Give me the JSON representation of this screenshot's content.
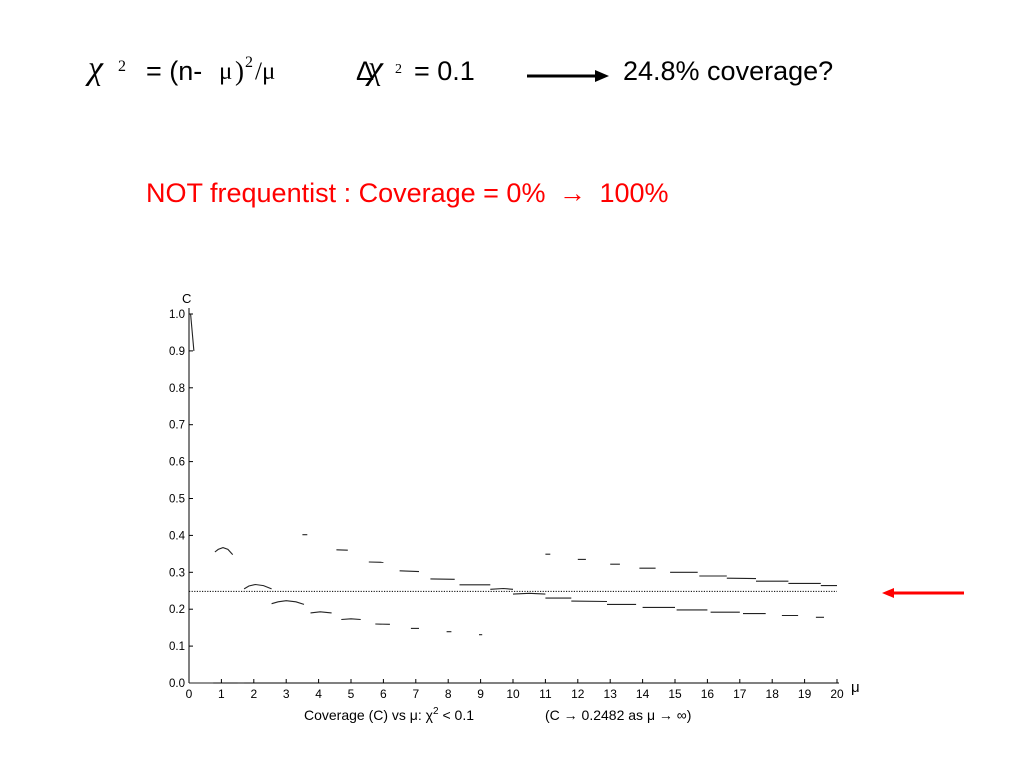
{
  "header": {
    "chi_symbol": "χ",
    "chi_power": "2",
    "formula_lhs": "= (n-",
    "mu": "μ",
    "close_paren": ")",
    "power2": "2",
    "slash_mu": "/μ",
    "delta": "Δ",
    "delta_chi": "χ",
    "delta_chi_power": "2",
    "delta_value": "= 0.1",
    "coverage_result": "24.8% coverage?"
  },
  "subtitle": {
    "part1": "NOT frequentist :  Coverage = 0%",
    "arrow": "→",
    "part2": "100%"
  },
  "colors": {
    "accent": "#ff0000",
    "text": "#000000"
  },
  "chart_data": {
    "type": "line",
    "ylabel": "C",
    "xlabel": "μ",
    "caption_left": "Coverage (C) vs μ:  χ",
    "caption_sup": "2",
    "caption_mid": " < 0.1",
    "caption_right": "(C → 0.2482 as μ → ∞)",
    "xlim": [
      0,
      20
    ],
    "ylim": [
      0.0,
      1.0
    ],
    "x_ticks": [
      "0",
      "1",
      "2",
      "3",
      "4",
      "5",
      "6",
      "7",
      "8",
      "9",
      "10",
      "11",
      "12",
      "13",
      "14",
      "15",
      "16",
      "17",
      "18",
      "19",
      "20"
    ],
    "y_ticks": [
      "0.0",
      "0.1",
      "0.2",
      "0.3",
      "0.4",
      "0.5",
      "0.6",
      "0.7",
      "0.8",
      "0.9",
      "1.0"
    ],
    "reference_line": {
      "y": 0.2482,
      "style": "dotted"
    },
    "segments": [
      [
        [
          0.05,
          1.0
        ],
        [
          0.15,
          0.9
        ]
      ],
      [
        [
          0.0,
          0.0
        ],
        [
          0.75,
          0.0
        ]
      ],
      [
        [
          1.5,
          0.0
        ],
        [
          1.7,
          0.0
        ]
      ],
      [
        [
          0.8,
          0.355
        ],
        [
          0.9,
          0.362
        ],
        [
          1.05,
          0.367
        ],
        [
          1.2,
          0.362
        ],
        [
          1.35,
          0.348
        ]
      ],
      [
        [
          1.7,
          0.255
        ],
        [
          1.85,
          0.263
        ],
        [
          2.05,
          0.267
        ],
        [
          2.3,
          0.264
        ],
        [
          2.55,
          0.255
        ]
      ],
      [
        [
          2.55,
          0.215
        ],
        [
          2.75,
          0.22
        ],
        [
          3.0,
          0.223
        ],
        [
          3.3,
          0.22
        ],
        [
          3.55,
          0.213
        ]
      ],
      [
        [
          3.75,
          0.19
        ],
        [
          4.05,
          0.193
        ],
        [
          4.4,
          0.19
        ]
      ],
      [
        [
          4.7,
          0.172
        ],
        [
          5.0,
          0.174
        ],
        [
          5.3,
          0.172
        ]
      ],
      [
        [
          5.75,
          0.16
        ],
        [
          6.2,
          0.159
        ]
      ],
      [
        [
          6.85,
          0.148
        ],
        [
          7.1,
          0.148
        ]
      ],
      [
        [
          7.95,
          0.139
        ],
        [
          8.1,
          0.139
        ]
      ],
      [
        [
          8.95,
          0.131
        ],
        [
          9.05,
          0.131
        ]
      ],
      [
        [
          3.5,
          0.402
        ],
        [
          3.65,
          0.402
        ]
      ],
      [
        [
          4.55,
          0.361
        ],
        [
          4.9,
          0.36
        ]
      ],
      [
        [
          5.55,
          0.328
        ],
        [
          6.0,
          0.327
        ]
      ],
      [
        [
          6.5,
          0.304
        ],
        [
          7.1,
          0.302
        ]
      ],
      [
        [
          7.45,
          0.282
        ],
        [
          8.2,
          0.281
        ]
      ],
      [
        [
          8.35,
          0.266
        ],
        [
          9.3,
          0.266
        ]
      ],
      [
        [
          9.3,
          0.254
        ],
        [
          9.7,
          0.256
        ],
        [
          10.0,
          0.254
        ]
      ],
      [
        [
          10.0,
          0.241
        ],
        [
          10.5,
          0.243
        ],
        [
          11.0,
          0.241
        ]
      ],
      [
        [
          11.0,
          0.23
        ],
        [
          11.8,
          0.23
        ]
      ],
      [
        [
          11.8,
          0.222
        ],
        [
          12.9,
          0.221
        ]
      ],
      [
        [
          12.9,
          0.213
        ],
        [
          13.8,
          0.213
        ]
      ],
      [
        [
          14.0,
          0.205
        ],
        [
          15.0,
          0.205
        ]
      ],
      [
        [
          15.05,
          0.198
        ],
        [
          16.0,
          0.198
        ]
      ],
      [
        [
          16.1,
          0.192
        ],
        [
          17.0,
          0.192
        ]
      ],
      [
        [
          17.1,
          0.188
        ],
        [
          17.8,
          0.188
        ]
      ],
      [
        [
          18.3,
          0.183
        ],
        [
          18.8,
          0.183
        ]
      ],
      [
        [
          19.35,
          0.178
        ],
        [
          19.6,
          0.178
        ]
      ],
      [
        [
          11.0,
          0.349
        ],
        [
          11.15,
          0.349
        ]
      ],
      [
        [
          12.0,
          0.335
        ],
        [
          12.25,
          0.335
        ]
      ],
      [
        [
          13.0,
          0.322
        ],
        [
          13.3,
          0.322
        ]
      ],
      [
        [
          13.9,
          0.311
        ],
        [
          14.4,
          0.311
        ]
      ],
      [
        [
          14.85,
          0.3
        ],
        [
          15.7,
          0.3
        ]
      ],
      [
        [
          15.75,
          0.29
        ],
        [
          16.6,
          0.29
        ]
      ],
      [
        [
          16.6,
          0.284
        ],
        [
          17.5,
          0.283
        ]
      ],
      [
        [
          17.5,
          0.276
        ],
        [
          18.5,
          0.276
        ]
      ],
      [
        [
          18.5,
          0.27
        ],
        [
          19.5,
          0.27
        ]
      ],
      [
        [
          19.5,
          0.264
        ],
        [
          20.0,
          0.264
        ]
      ]
    ]
  }
}
